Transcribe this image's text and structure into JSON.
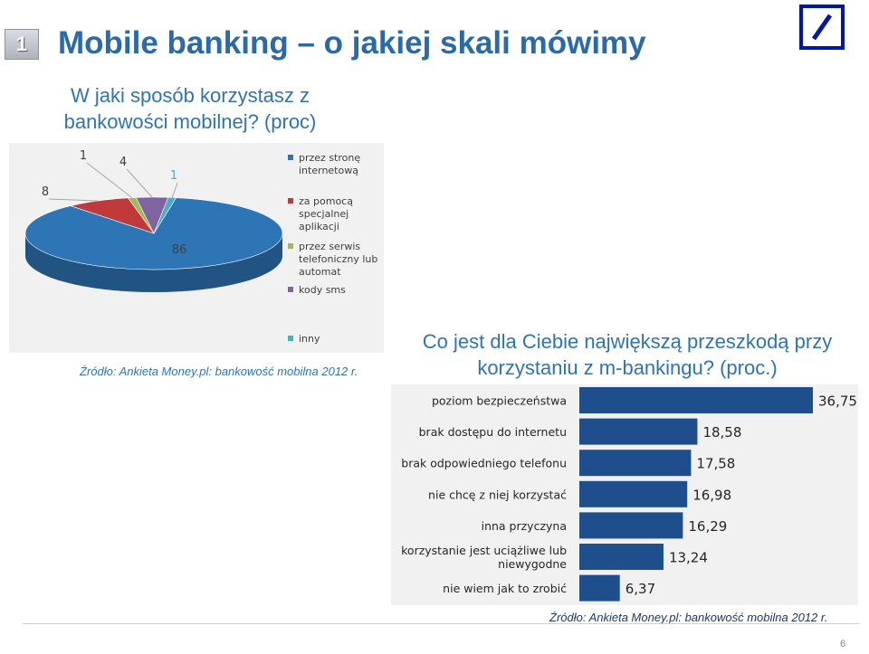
{
  "slide_number": "1",
  "title": "Mobile banking – o jakiej skali mówimy",
  "page_number": "6",
  "charts": [
    {
      "question_line1": "W jaki sposób korzystasz z",
      "question_line2": "bankowości mobilnej? (proc)",
      "source": "Źródło: Ankieta Money.pl: bankowość mobilna 2012 r."
    },
    {
      "question_line1": "Co jest dla Ciebie największą przeszkodą przy",
      "question_line2": "korzystaniu z m-bankingu? (proc.)",
      "source": "Źródło: Ankieta Money.pl: bankowość mobilna 2012 r."
    }
  ],
  "chart_data": [
    {
      "type": "pie",
      "title": "W jaki sposób korzystasz z bankowości mobilnej? (proc)",
      "categories": [
        [
          "przez stronę",
          "internetową"
        ],
        [
          "za pomocą",
          "specjalnej",
          "aplikacji"
        ],
        [
          "przez serwis",
          "telefoniczny lub",
          "automat"
        ],
        [
          "kody sms"
        ],
        [
          "inny"
        ]
      ],
      "values": [
        86,
        8,
        1,
        4,
        1
      ],
      "colors": [
        "#2e75b6",
        "#c0393b",
        "#9bbb59",
        "#8064a2",
        "#4bacc6"
      ],
      "legend_position": "right"
    },
    {
      "type": "bar",
      "orientation": "horizontal",
      "title": "Co jest dla Ciebie największą przeszkodą przy korzystaniu z m-bankingu? (proc.)",
      "categories": [
        [
          "poziom bezpieczeństwa"
        ],
        [
          "brak dostępu do internetu"
        ],
        [
          "brak odpowiedniego telefonu"
        ],
        [
          "nie chcę z niej korzystać"
        ],
        [
          "inna przyczyna"
        ],
        [
          "korzystanie jest uciążliwe lub",
          "niewygodne"
        ],
        [
          "nie wiem jak to zrobić"
        ]
      ],
      "values": [
        36.75,
        18.58,
        17.58,
        16.98,
        16.29,
        13.24,
        6.37
      ],
      "value_labels": [
        "36,75",
        "18,58",
        "17,58",
        "16,98",
        "16,29",
        "13,24",
        "6,37"
      ],
      "bar_color": "#1f4e8c",
      "xlim": [
        0,
        36.75
      ]
    }
  ]
}
